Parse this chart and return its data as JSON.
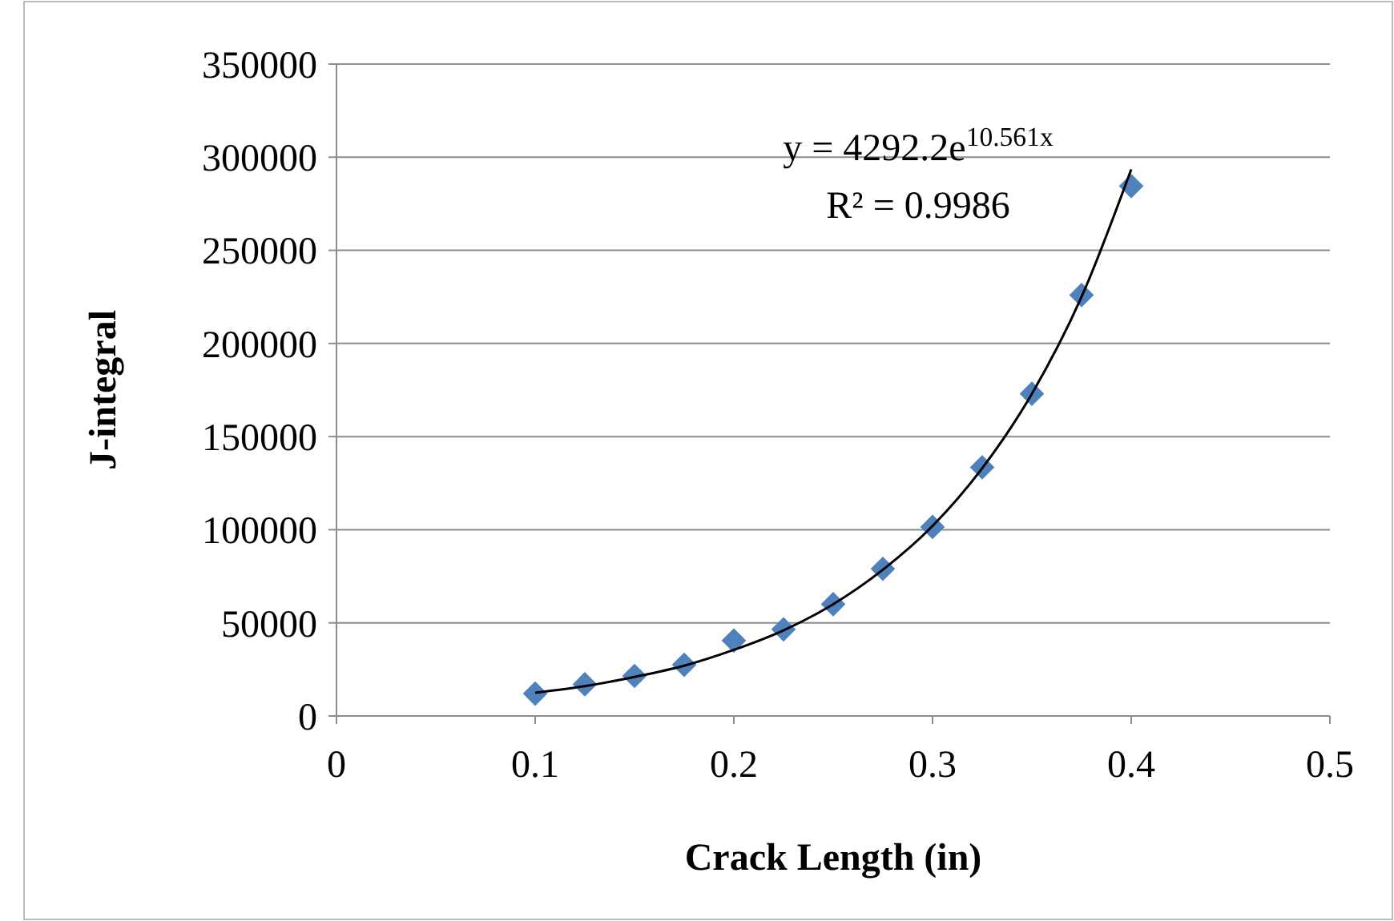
{
  "chart_data": {
    "type": "scatter",
    "xlabel": "Crack Length (in)",
    "ylabel": "J-integral",
    "annotations": [
      "y = 4292.2e$^{10.561x}$",
      "R² = 0.9986"
    ],
    "x": [
      0.1,
      0.125,
      0.15,
      0.175,
      0.2,
      0.225,
      0.25,
      0.275,
      0.3,
      0.325,
      0.35,
      0.375,
      0.4
    ],
    "series": [
      {
        "color": "#4f81bd",
        "marker": "diamond",
        "values": [
          12000,
          17000,
          21500,
          27500,
          40500,
          46500,
          60000,
          79000,
          101500,
          133500,
          173000,
          226000,
          284500
        ]
      },
      {
        "type": "line",
        "color": "#000000",
        "marker": "none",
        "x": [
          0.1,
          0.125,
          0.15,
          0.175,
          0.2,
          0.225,
          0.25,
          0.275,
          0.3,
          0.325,
          0.35,
          0.375,
          0.4
        ],
        "values": [
          12500,
          16000,
          21000,
          27000,
          35500,
          46000,
          60000,
          78500,
          102000,
          133000,
          173000,
          225000,
          293500
        ]
      }
    ],
    "xlim": [
      0,
      0.5
    ],
    "xticks": [
      0,
      0.1,
      0.2,
      0.3,
      0.4,
      0.5
    ],
    "ylim": [
      0,
      350000
    ],
    "yticks": [
      0,
      50000,
      100000,
      150000,
      200000,
      250000,
      300000,
      350000
    ],
    "grid": "y"
  }
}
